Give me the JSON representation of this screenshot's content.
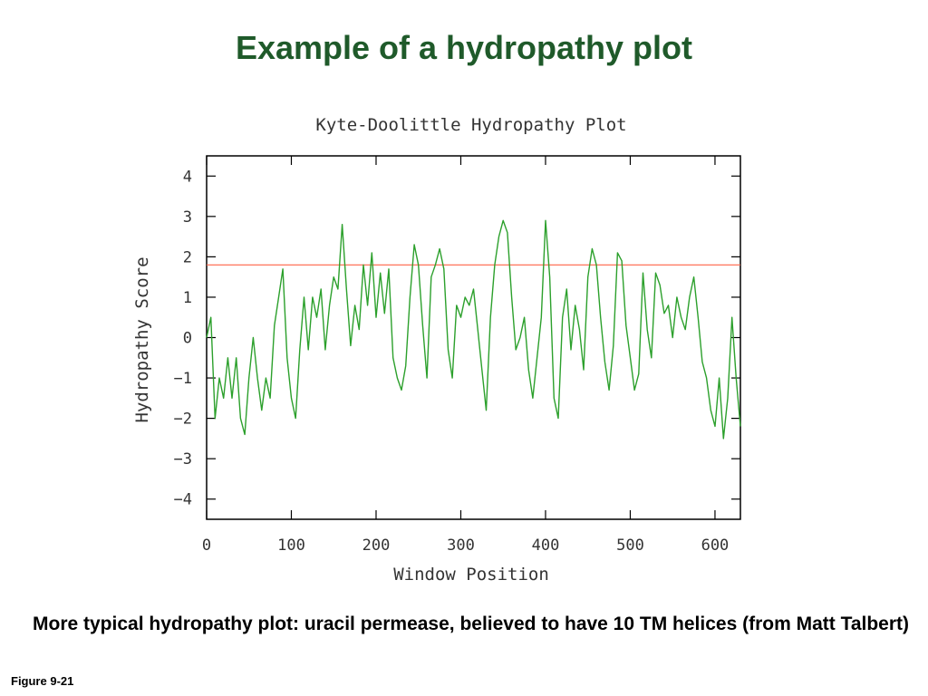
{
  "slide": {
    "title": "Example of a hydropathy plot",
    "caption": "More typical hydropathy plot: uracil permease, believed to have 10 TM helices (from Matt Talbert)",
    "figure_label": "Figure 9-21"
  },
  "chart_data": {
    "type": "line",
    "title": "Kyte-Doolittle Hydropathy Plot",
    "xlabel": "Window Position",
    "ylabel": "Hydropathy Score",
    "xlim": [
      0,
      630
    ],
    "ylim": [
      -4.5,
      4.5
    ],
    "xticks": [
      0,
      100,
      200,
      300,
      400,
      500,
      600
    ],
    "yticks": [
      4,
      3,
      2,
      1,
      0,
      -1,
      -2,
      -3,
      -4
    ],
    "threshold": 1.8,
    "colors": {
      "series": "#2ca02c",
      "threshold": "#ff6347",
      "axes": "#000000",
      "text": "#333333"
    },
    "series": [
      {
        "x": [
          0,
          5,
          10,
          15,
          20,
          25,
          30,
          35,
          40,
          45,
          50,
          55,
          60,
          65,
          70,
          75,
          80,
          85,
          90,
          95,
          100,
          105,
          110,
          115,
          120,
          125,
          130,
          135,
          140,
          145,
          150,
          155,
          160,
          165,
          170,
          175,
          180,
          185,
          190,
          195,
          200,
          205,
          210,
          215,
          220,
          225,
          230,
          235,
          240,
          245,
          250,
          255,
          260,
          265,
          270,
          275,
          280,
          285,
          290,
          295,
          300,
          305,
          310,
          315,
          320,
          325,
          330,
          335,
          340,
          345,
          350,
          355,
          360,
          365,
          370,
          375,
          380,
          385,
          390,
          395,
          400,
          405,
          410,
          415,
          420,
          425,
          430,
          435,
          440,
          445,
          450,
          455,
          460,
          465,
          470,
          475,
          480,
          485,
          490,
          495,
          500,
          505,
          510,
          515,
          520,
          525,
          530,
          535,
          540,
          545,
          550,
          555,
          560,
          565,
          570,
          575,
          580,
          585,
          590,
          595,
          600,
          605,
          610,
          615,
          620,
          625,
          630
        ],
        "values": [
          0.0,
          0.5,
          -2.0,
          -1.0,
          -1.5,
          -0.5,
          -1.5,
          -0.5,
          -2.0,
          -2.4,
          -1.0,
          0.0,
          -1.0,
          -1.8,
          -1.0,
          -1.5,
          0.3,
          1.0,
          1.7,
          -0.5,
          -1.5,
          -2.0,
          -0.3,
          1.0,
          -0.3,
          1.0,
          0.5,
          1.2,
          -0.3,
          0.8,
          1.5,
          1.2,
          2.8,
          1.2,
          -0.2,
          0.8,
          0.2,
          1.8,
          0.8,
          2.1,
          0.5,
          1.6,
          0.6,
          1.7,
          -0.5,
          -1.0,
          -1.3,
          -0.7,
          1.0,
          2.3,
          1.8,
          0.3,
          -1.0,
          1.5,
          1.8,
          2.2,
          1.7,
          -0.3,
          -1.0,
          0.8,
          0.5,
          1.0,
          0.8,
          1.2,
          0.2,
          -0.8,
          -1.8,
          0.5,
          1.8,
          2.5,
          2.9,
          2.6,
          1.0,
          -0.3,
          0.0,
          0.5,
          -0.8,
          -1.5,
          -0.5,
          0.5,
          2.9,
          1.5,
          -1.5,
          -2.0,
          0.5,
          1.2,
          -0.3,
          0.8,
          0.2,
          -0.8,
          1.5,
          2.2,
          1.8,
          0.5,
          -0.6,
          -1.3,
          -0.2,
          2.1,
          1.9,
          0.3,
          -0.5,
          -1.3,
          -0.9,
          1.6,
          0.2,
          -0.5,
          1.6,
          1.3,
          0.6,
          0.8,
          0.0,
          1.0,
          0.5,
          0.2,
          1.0,
          1.5,
          0.5,
          -0.6,
          -1.0,
          -1.8,
          -2.2,
          -1.0,
          -2.5,
          -1.5,
          0.5,
          -1.0,
          -2.2
        ]
      }
    ]
  }
}
